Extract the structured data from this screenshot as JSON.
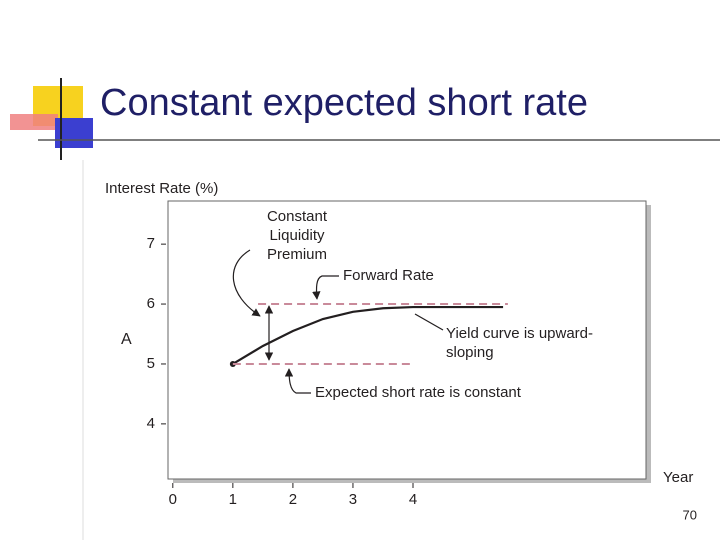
{
  "title": "Constant expected short rate",
  "page_number": "70",
  "chart_data": {
    "type": "line",
    "ylabel": "Interest Rate (%)",
    "xlabel": "Year",
    "y_marker": "A",
    "xlim": [
      -0.08,
      7.88
    ],
    "ylim": [
      3.08,
      7.72
    ],
    "xticks": [
      0,
      1,
      2,
      3,
      4
    ],
    "yticks": [
      4,
      5,
      6,
      7
    ],
    "series": [
      {
        "color": "#231f20",
        "dash": false,
        "x": [
          1,
          1.5,
          2,
          2.5,
          3,
          3.5,
          4,
          4.5,
          5,
          5.5
        ],
        "values": [
          5.0,
          5.3,
          5.55,
          5.75,
          5.87,
          5.93,
          5.95,
          5.95,
          5.95,
          5.95
        ]
      },
      {
        "color": "#c98a9a",
        "dash": true,
        "x": [
          1.42,
          5.58
        ],
        "values": [
          6,
          6
        ]
      },
      {
        "color": "#c98a9a",
        "dash": true,
        "x": [
          1,
          4
        ],
        "values": [
          5,
          5
        ]
      }
    ],
    "annotations": {
      "liquidity_premium": [
        "Constant",
        "Liquidity",
        "Premium"
      ],
      "forward_rate": "Forward Rate",
      "yield_curve": [
        "Yield curve is upward-",
        "sloping"
      ],
      "expected_short_rate": "Expected short rate is constant"
    }
  }
}
